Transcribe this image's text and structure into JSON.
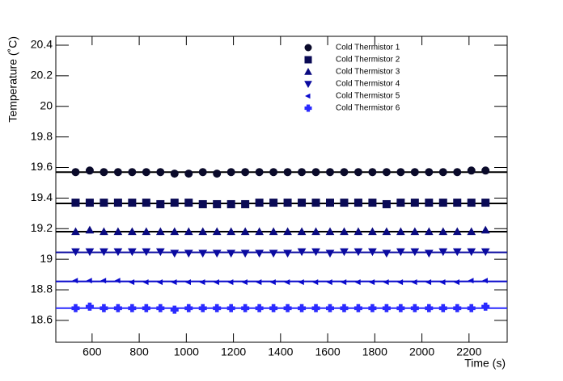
{
  "chart_data": {
    "type": "scatter",
    "x_label": "Time (s)",
    "y_label": "Temperature (˚C)",
    "x": [
      530,
      590,
      650,
      710,
      770,
      830,
      890,
      950,
      1010,
      1070,
      1130,
      1190,
      1250,
      1310,
      1370,
      1430,
      1490,
      1550,
      1610,
      1670,
      1730,
      1790,
      1850,
      1910,
      1970,
      2030,
      2090,
      2150,
      2210,
      2270
    ],
    "xlim": [
      446,
      2362
    ],
    "xticks": [
      600,
      800,
      1000,
      1200,
      1400,
      1600,
      1800,
      2000,
      2200
    ],
    "ylim": [
      18.457,
      20.458
    ],
    "yticks": [
      18.6,
      18.8,
      19,
      19.2,
      19.4,
      19.6,
      19.8,
      20,
      20.2,
      20.4
    ],
    "series": [
      {
        "name": "Cold Thermistor 1",
        "color": "#0a0a2a",
        "marker": "circle",
        "fit": 19.57,
        "values": [
          19.57,
          19.58,
          19.57,
          19.57,
          19.57,
          19.57,
          19.57,
          19.56,
          19.56,
          19.57,
          19.56,
          19.57,
          19.57,
          19.57,
          19.57,
          19.57,
          19.57,
          19.57,
          19.57,
          19.57,
          19.57,
          19.57,
          19.57,
          19.57,
          19.57,
          19.57,
          19.57,
          19.57,
          19.58,
          19.58
        ]
      },
      {
        "name": "Cold Thermistor 2",
        "color": "#0a0a55",
        "marker": "square",
        "fit": 19.365,
        "values": [
          19.37,
          19.37,
          19.37,
          19.37,
          19.37,
          19.37,
          19.36,
          19.37,
          19.37,
          19.36,
          19.36,
          19.36,
          19.36,
          19.37,
          19.37,
          19.37,
          19.37,
          19.37,
          19.37,
          19.37,
          19.37,
          19.37,
          19.36,
          19.37,
          19.37,
          19.37,
          19.37,
          19.37,
          19.37,
          19.37
        ]
      },
      {
        "name": "Cold Thermistor 3",
        "color": "#0a0a80",
        "marker": "triangle-up",
        "fit": 19.18,
        "values": [
          19.18,
          19.19,
          19.18,
          19.18,
          19.18,
          19.18,
          19.18,
          19.18,
          19.18,
          19.18,
          19.18,
          19.18,
          19.18,
          19.18,
          19.18,
          19.18,
          19.18,
          19.18,
          19.18,
          19.18,
          19.18,
          19.18,
          19.18,
          19.18,
          19.18,
          19.18,
          19.18,
          19.18,
          19.18,
          19.19
        ]
      },
      {
        "name": "Cold Thermistor 4",
        "color": "#0a0aa0",
        "marker": "triangle-down",
        "fit": 19.045,
        "values": [
          19.05,
          19.05,
          19.05,
          19.05,
          19.05,
          19.05,
          19.05,
          19.04,
          19.04,
          19.04,
          19.04,
          19.04,
          19.04,
          19.04,
          19.04,
          19.04,
          19.05,
          19.05,
          19.04,
          19.05,
          19.05,
          19.05,
          19.04,
          19.05,
          19.05,
          19.04,
          19.05,
          19.05,
          19.05,
          19.05
        ]
      },
      {
        "name": "Cold Thermistor 5",
        "color": "#0a0acc",
        "marker": "triangle-left",
        "fit": 18.855,
        "values": [
          18.86,
          18.86,
          18.86,
          18.86,
          18.85,
          18.85,
          18.85,
          18.85,
          18.85,
          18.85,
          18.85,
          18.85,
          18.85,
          18.85,
          18.85,
          18.85,
          18.85,
          18.85,
          18.85,
          18.85,
          18.85,
          18.85,
          18.85,
          18.85,
          18.85,
          18.85,
          18.85,
          18.85,
          18.86,
          18.86
        ]
      },
      {
        "name": "Cold Thermistor 6",
        "color": "#2a2aff",
        "marker": "cross",
        "fit": 18.68,
        "values": [
          18.68,
          18.69,
          18.68,
          18.68,
          18.68,
          18.68,
          18.68,
          18.67,
          18.68,
          18.68,
          18.68,
          18.68,
          18.68,
          18.68,
          18.68,
          18.68,
          18.68,
          18.68,
          18.68,
          18.68,
          18.68,
          18.68,
          18.68,
          18.68,
          18.68,
          18.68,
          18.68,
          18.68,
          18.68,
          18.69
        ]
      }
    ]
  }
}
